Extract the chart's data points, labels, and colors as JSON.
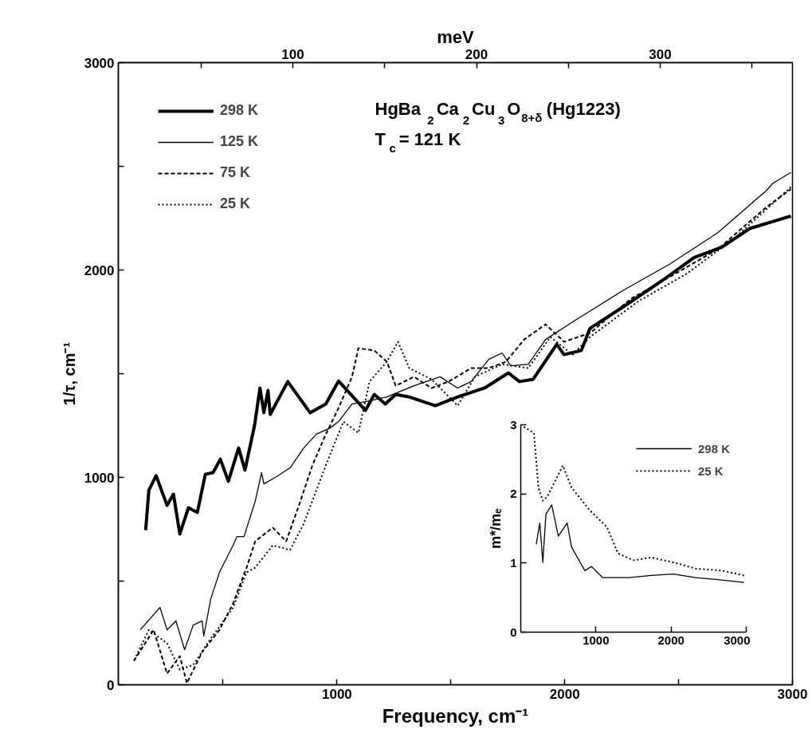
{
  "chart_data": [
    {
      "type": "line",
      "annotations": [
        "HgBa$_{2}$Ca$_{2}$Cu$_{3}$O$_{8+δ}$ (Hg1223)",
        "T$_{c}$= 121 K"
      ],
      "xlabel": "Frequency, cm⁻¹",
      "ylabel": "1/τ, cm⁻¹",
      "x2label": "meV",
      "xlim": [
        40,
        3000
      ],
      "xticks": [
        {
          "value": 500,
          "label": null
        },
        1000,
        {
          "value": 1500,
          "label": null
        },
        2000,
        {
          "value": 2500,
          "label": null
        },
        3000
      ],
      "ylim": [
        0,
        3000
      ],
      "yticks": [
        0,
        {
          "value": 500,
          "label": null
        },
        1000,
        {
          "value": 1500,
          "label": null
        },
        2000,
        {
          "value": 2500,
          "label": null
        },
        3000
      ],
      "x2lim": [
        5,
        372
      ],
      "x2ticks": [
        {
          "value": 50,
          "label": null
        },
        100,
        {
          "value": 150,
          "label": null
        },
        200,
        {
          "value": 250,
          "label": null
        },
        300,
        {
          "value": 350,
          "label": null
        }
      ],
      "grid": false,
      "legend": "top left",
      "series": [
        {
          "name": "298 K",
          "color": "#000000",
          "line_style": "solid",
          "x": [
            160,
            174,
            206,
            254,
            282,
            310,
            348,
            387,
            422,
            456,
            488,
            523,
            568,
            596,
            638,
            662,
            679,
            697,
            707,
            784,
            882,
            951,
            1007,
            1125,
            1164,
            1212,
            1258,
            1317,
            1432,
            1530,
            1648,
            1753,
            1801,
            1861,
            1965,
            1997,
            2073,
            2111,
            2254,
            2429,
            2568,
            2690,
            2812,
            2993
          ],
          "values": [
            746,
            938,
            1008,
            865,
            919,
            727,
            854,
            831,
            1015,
            1023,
            1088,
            981,
            1142,
            1035,
            1250,
            1431,
            1312,
            1419,
            1304,
            1462,
            1312,
            1354,
            1465,
            1323,
            1400,
            1354,
            1400,
            1388,
            1346,
            1388,
            1431,
            1504,
            1462,
            1473,
            1642,
            1592,
            1612,
            1719,
            1820,
            1950,
            2060,
            2110,
            2200,
            2260
          ]
        },
        {
          "name": "125 K",
          "color": "#000000",
          "line_style": "solid",
          "x": [
            136,
            223,
            254,
            293,
            331,
            369,
            408,
            415,
            446,
            484,
            544,
            561,
            592,
            641,
            669,
            679,
            735,
            794,
            854,
            909,
            969,
            1007,
            1066,
            1125,
            1219,
            1338,
            1453,
            1530,
            1589,
            1666,
            1725,
            1763,
            1840,
            1916,
            2035,
            2254,
            2463,
            2672,
            2882,
            2916,
            2993
          ],
          "values": [
            265,
            373,
            265,
            308,
            169,
            288,
            308,
            235,
            415,
            542,
            673,
            715,
            715,
            885,
            1023,
            969,
            1004,
            1046,
            1142,
            1208,
            1238,
            1269,
            1354,
            1365,
            1388,
            1442,
            1485,
            1431,
            1462,
            1569,
            1600,
            1538,
            1546,
            1665,
            1750,
            1900,
            2030,
            2180,
            2380,
            2420,
            2470
          ]
        },
        {
          "name": "75 K",
          "color": "#000000",
          "line_style": "dashed",
          "x": [
            108,
            195,
            254,
            310,
            341,
            408,
            484,
            544,
            603,
            641,
            718,
            777,
            833,
            892,
            951,
            1007,
            1066,
            1094,
            1164,
            1219,
            1258,
            1338,
            1415,
            1491,
            1589,
            1666,
            1742,
            1822,
            1916,
            1997,
            2111,
            2289,
            2498,
            2672,
            2882,
            2993
          ],
          "values": [
            115,
            265,
            54,
            138,
            8,
            158,
            265,
            392,
            565,
            692,
            758,
            692,
            865,
            1058,
            1208,
            1335,
            1485,
            1623,
            1612,
            1558,
            1442,
            1485,
            1431,
            1462,
            1527,
            1527,
            1558,
            1665,
            1738,
            1654,
            1696,
            1860,
            1990,
            2100,
            2300,
            2390
          ]
        },
        {
          "name": "25 K",
          "color": "#000000",
          "line_style": "dotted",
          "x": [
            118,
            174,
            254,
            310,
            369,
            446,
            544,
            603,
            641,
            718,
            794,
            854,
            951,
            1028,
            1094,
            1143,
            1219,
            1268,
            1317,
            1415,
            1530,
            1606,
            1725,
            1840,
            1937,
            2035,
            2111,
            2324,
            2533,
            2742,
            2993
          ],
          "values": [
            138,
            265,
            200,
            73,
            96,
            223,
            373,
            542,
            565,
            673,
            650,
            777,
            1058,
            1269,
            1215,
            1462,
            1558,
            1654,
            1527,
            1473,
            1346,
            1485,
            1546,
            1527,
            1677,
            1592,
            1677,
            1850,
            1980,
            2150,
            2400
          ]
        }
      ]
    },
    {
      "type": "line",
      "ylabel": "m*/mₑ",
      "xlim": [
        0,
        3000
      ],
      "xticks": [
        1000,
        2000,
        3000
      ],
      "ylim": [
        0,
        3
      ],
      "yticks": [
        0,
        1,
        2,
        3
      ],
      "grid": false,
      "legend": "top right",
      "series": [
        {
          "name": "298 K",
          "color": "#000000",
          "line_style": "solid",
          "x": [
            206,
            253,
            294,
            335,
            412,
            500,
            618,
            676,
            853,
            941,
            1088,
            1441,
            1735,
            2029,
            2324,
            2618,
            2971
          ],
          "values": [
            1.27,
            1.58,
            1.01,
            1.71,
            1.84,
            1.39,
            1.58,
            1.23,
            0.89,
            0.95,
            0.79,
            0.79,
            0.82,
            0.84,
            0.79,
            0.76,
            0.72
          ]
        },
        {
          "name": "25 K",
          "color": "#000000",
          "line_style": "dotted",
          "x": [
            41,
            176,
            235,
            294,
            353,
            441,
            559,
            676,
            912,
            1147,
            1294,
            1500,
            1735,
            2029,
            2324,
            2676,
            2971
          ],
          "values": [
            2.97,
            2.88,
            2.09,
            1.9,
            1.96,
            2.15,
            2.41,
            2.09,
            1.77,
            1.52,
            1.14,
            1.04,
            1.08,
            1.01,
            0.92,
            0.89,
            0.82
          ]
        }
      ]
    }
  ]
}
